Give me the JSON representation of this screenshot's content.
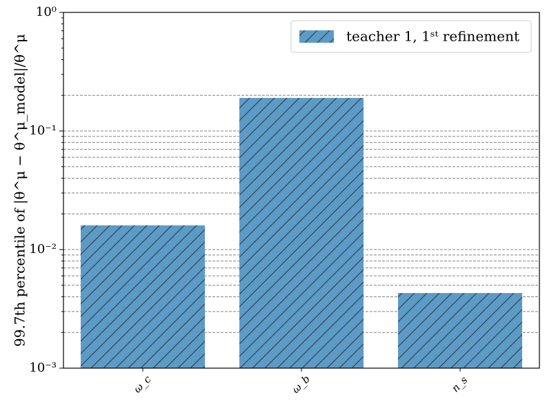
{
  "chart_data": {
    "type": "bar",
    "log_y": true,
    "y_label": "99.7th percentile of |θ^μ − θ^μ_model|/θ^μ",
    "categories": [
      "ω_c",
      "ω_b",
      "n_s"
    ],
    "series": [
      {
        "name": "teacher 1, 1ˢᵗ refinement",
        "color": "#5b9bc8",
        "hatch": "/",
        "values": [
          0.016,
          0.19,
          0.0043
        ]
      }
    ],
    "ylim": [
      0.001,
      1
    ],
    "yticks": [
      {
        "value": 0.001,
        "label": "10⁻³"
      },
      {
        "value": 0.01,
        "label": "10⁻²"
      },
      {
        "value": 0.1,
        "label": "10⁻¹"
      },
      {
        "value": 1,
        "label": "10⁰"
      }
    ],
    "minor_yticks": [
      0.002,
      0.003,
      0.004,
      0.005,
      0.006,
      0.007,
      0.008,
      0.009,
      0.02,
      0.03,
      0.04,
      0.05,
      0.06,
      0.07,
      0.08,
      0.09,
      0.2,
      0.3,
      0.4,
      0.5,
      0.6,
      0.7,
      0.8,
      0.9
    ],
    "grid_lines": [
      0.002,
      0.003,
      0.004,
      0.005,
      0.006,
      0.007,
      0.008,
      0.009,
      0.01,
      0.02,
      0.03,
      0.04,
      0.05,
      0.06,
      0.07,
      0.08,
      0.09,
      0.1,
      0.2
    ],
    "legend": "upper right"
  }
}
